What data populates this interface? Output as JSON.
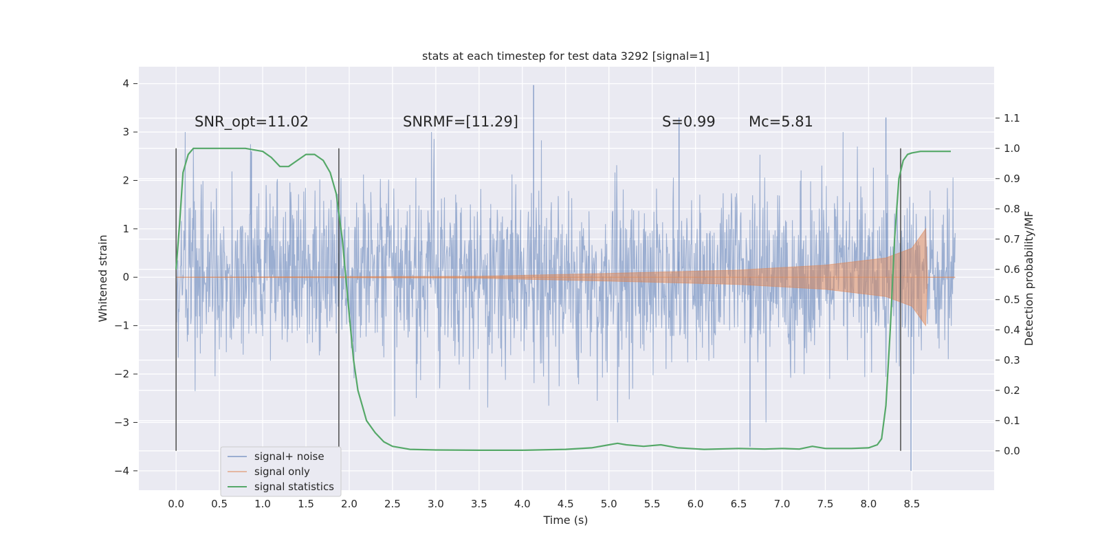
{
  "chart_data": {
    "type": "line",
    "title": "stats at each timestep for test data 3292 [signal=1]",
    "xlabel": "Time (s)",
    "ylabel": "Whitened strain",
    "ylabel_right": "Detection probability/MF",
    "xlim": [
      -0.43,
      9.45
    ],
    "ylim": [
      -4.4,
      4.35
    ],
    "ylim_right": [
      -0.13,
      1.27
    ],
    "x_ticks": [
      "0.0",
      "0.5",
      "1.0",
      "1.5",
      "2.0",
      "2.5",
      "3.0",
      "3.5",
      "4.0",
      "4.5",
      "5.0",
      "5.5",
      "6.0",
      "6.5",
      "7.0",
      "7.5",
      "8.0",
      "8.5"
    ],
    "y_ticks": [
      "4",
      "3",
      "2",
      "1",
      "0",
      "−1",
      "−2",
      "−3",
      "−4"
    ],
    "y_right_ticks": [
      "1.1",
      "1.0",
      "0.9",
      "0.8",
      "0.7",
      "0.6",
      "0.5",
      "0.4",
      "0.3",
      "0.2",
      "0.1",
      "0.0"
    ],
    "grid": true,
    "legend_position": "lower-left",
    "annotations": {
      "snr_opt": "SNR_opt=11.02",
      "snr_mf": "SNRMF=[11.29]",
      "s": "S=0.99",
      "mc": "Mc=5.81"
    },
    "vertical_lines_x": [
      0.0,
      1.88,
      8.37
    ],
    "series": [
      {
        "name": "signal+ noise",
        "color": "#4c72b0",
        "x_range": [
          0.0,
          9.0
        ],
        "amplitude_typical": 1.3,
        "peaks": [
          [
            4.13,
            3.97
          ],
          [
            8.49,
            -4.0
          ],
          [
            5.81,
            3.3
          ],
          [
            0.87,
            2.6
          ],
          [
            8.2,
            3.3
          ],
          [
            6.63,
            -3.5
          ]
        ]
      },
      {
        "name": "signal only",
        "color": "#dd8452",
        "x_range": [
          0.0,
          9.0
        ],
        "envelope": [
          [
            0.0,
            0.0
          ],
          [
            3.5,
            0.02
          ],
          [
            5.0,
            0.08
          ],
          [
            6.5,
            0.15
          ],
          [
            7.5,
            0.25
          ],
          [
            8.2,
            0.4
          ],
          [
            8.5,
            0.6
          ],
          [
            8.6,
            0.85
          ],
          [
            8.66,
            1.0
          ],
          [
            8.68,
            0.0
          ],
          [
            9.0,
            0.0
          ]
        ]
      },
      {
        "name": "signal statistics",
        "color": "#55a868",
        "axis": "right",
        "x": [
          0.0,
          0.04,
          0.08,
          0.14,
          0.2,
          0.3,
          0.5,
          0.8,
          1.0,
          1.1,
          1.2,
          1.3,
          1.4,
          1.5,
          1.6,
          1.7,
          1.78,
          1.85,
          1.92,
          2.0,
          2.05,
          2.1,
          2.15,
          2.2,
          2.3,
          2.4,
          2.5,
          2.7,
          3.0,
          3.5,
          4.0,
          4.5,
          4.8,
          5.0,
          5.1,
          5.2,
          5.4,
          5.6,
          5.8,
          6.1,
          6.5,
          6.8,
          7.0,
          7.2,
          7.35,
          7.5,
          7.8,
          8.0,
          8.1,
          8.15,
          8.2,
          8.25,
          8.3,
          8.35,
          8.4,
          8.45,
          8.5,
          8.6,
          8.8,
          8.95
        ],
        "y": [
          0.6,
          0.75,
          0.92,
          0.98,
          1.0,
          1.0,
          1.0,
          1.0,
          0.99,
          0.97,
          0.94,
          0.94,
          0.96,
          0.98,
          0.98,
          0.96,
          0.92,
          0.85,
          0.7,
          0.45,
          0.3,
          0.2,
          0.15,
          0.1,
          0.06,
          0.03,
          0.015,
          0.005,
          0.003,
          0.002,
          0.002,
          0.005,
          0.01,
          0.02,
          0.025,
          0.02,
          0.015,
          0.02,
          0.01,
          0.005,
          0.008,
          0.006,
          0.008,
          0.006,
          0.015,
          0.008,
          0.008,
          0.01,
          0.02,
          0.04,
          0.15,
          0.4,
          0.7,
          0.9,
          0.96,
          0.98,
          0.985,
          0.99,
          0.99,
          0.99
        ]
      }
    ]
  }
}
